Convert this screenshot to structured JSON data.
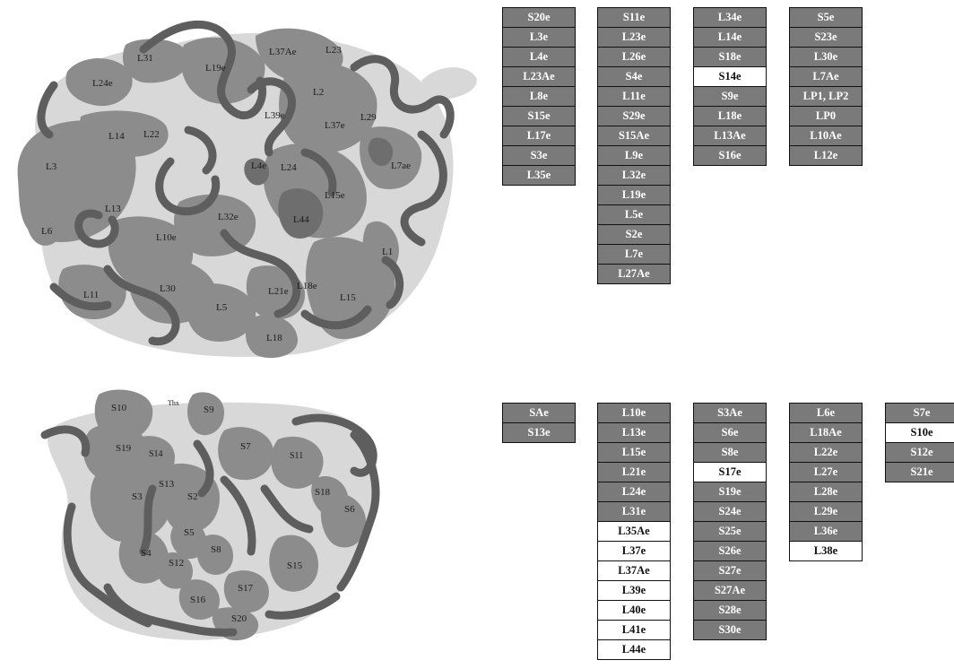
{
  "colors": {
    "protein_fill": "#8c8c8c",
    "rna_backbone": "#5e5e5e",
    "rna_surface": "#d6d6d6",
    "label_text": "#1c1c1c",
    "table_fill": "#7a7a7a",
    "table_fill_alt": "#ffffff",
    "table_text": "#ffffff",
    "table_text_alt": "#111111"
  },
  "large_subunit_labels": [
    "L31",
    "L37Ae",
    "L23",
    "L24e",
    "L19e",
    "L2",
    "L39e",
    "L37e",
    "L29",
    "L14",
    "L22",
    "L3",
    "L4e",
    "L24",
    "L7ae",
    "L15e",
    "L13",
    "L32e",
    "L44",
    "L6",
    "L10e",
    "L1",
    "L11",
    "L30",
    "L21e",
    "L18e",
    "L15",
    "L5",
    "L18"
  ],
  "small_subunit_labels": [
    "S10",
    "Thx",
    "S9",
    "S19",
    "S14",
    "S7",
    "S11",
    "S13",
    "S3",
    "S2",
    "S18",
    "S6",
    "S5",
    "S8",
    "S4",
    "S12",
    "S15",
    "S16",
    "S17",
    "S20"
  ],
  "large_subunit_table": {
    "columns": [
      [
        {
          "t": "S20e"
        },
        {
          "t": "L3e"
        },
        {
          "t": "L4e"
        },
        {
          "t": "L23Ae"
        },
        {
          "t": "L8e"
        },
        {
          "t": "S15e"
        },
        {
          "t": "L17e"
        },
        {
          "t": "S3e"
        },
        {
          "t": "L35e"
        }
      ],
      [
        {
          "t": "S11e"
        },
        {
          "t": "L23e"
        },
        {
          "t": "L26e"
        },
        {
          "t": "S4e"
        },
        {
          "t": "L11e"
        },
        {
          "t": "S29e"
        },
        {
          "t": "S15Ae"
        },
        {
          "t": "L9e"
        },
        {
          "t": "L32e"
        },
        {
          "t": "L19e"
        },
        {
          "t": "L5e"
        },
        {
          "t": "S2e"
        },
        {
          "t": "L7e"
        },
        {
          "t": "L27Ae"
        }
      ],
      [
        {
          "t": "L34e"
        },
        {
          "t": "L14e"
        },
        {
          "t": "S18e"
        },
        {
          "t": "S14e",
          "light": true
        },
        {
          "t": "S9e"
        },
        {
          "t": "L18e"
        },
        {
          "t": "L13Ae"
        },
        {
          "t": "S16e"
        }
      ],
      [
        {
          "t": "S5e"
        },
        {
          "t": "S23e"
        },
        {
          "t": "L30e"
        },
        {
          "t": "L7Ae"
        },
        {
          "t": "LP1, LP2"
        },
        {
          "t": "LP0"
        },
        {
          "t": "L10Ae"
        },
        {
          "t": "L12e"
        }
      ]
    ]
  },
  "small_subunit_table": {
    "columns": [
      [
        {
          "t": "SAe"
        },
        {
          "t": "S13e"
        }
      ],
      [
        {
          "t": "L10e"
        },
        {
          "t": "L13e"
        },
        {
          "t": "L15e"
        },
        {
          "t": "L21e"
        },
        {
          "t": "L24e"
        },
        {
          "t": "L31e"
        },
        {
          "t": "L35Ae",
          "light": true
        },
        {
          "t": "L37e",
          "light": true
        },
        {
          "t": "L37Ae",
          "light": true
        },
        {
          "t": "L39e",
          "light": true
        },
        {
          "t": "L40e",
          "light": true
        },
        {
          "t": "L41e",
          "light": true
        },
        {
          "t": "L44e",
          "light": true
        }
      ],
      [
        {
          "t": "S3Ae"
        },
        {
          "t": "S6e"
        },
        {
          "t": "S8e"
        },
        {
          "t": "S17e",
          "light": true
        },
        {
          "t": "S19e"
        },
        {
          "t": "S24e"
        },
        {
          "t": "S25e"
        },
        {
          "t": "S26e"
        },
        {
          "t": "S27e"
        },
        {
          "t": "S27Ae"
        },
        {
          "t": "S28e"
        },
        {
          "t": "S30e"
        }
      ],
      [
        {
          "t": "L6e"
        },
        {
          "t": "L18Ae"
        },
        {
          "t": "L22e"
        },
        {
          "t": "L27e"
        },
        {
          "t": "L28e"
        },
        {
          "t": "L29e"
        },
        {
          "t": "L36e"
        },
        {
          "t": "L38e",
          "light": true
        }
      ],
      [
        {
          "t": "S7e"
        },
        {
          "t": "S10e",
          "light": true
        },
        {
          "t": "S12e"
        },
        {
          "t": "S21e"
        }
      ]
    ]
  }
}
